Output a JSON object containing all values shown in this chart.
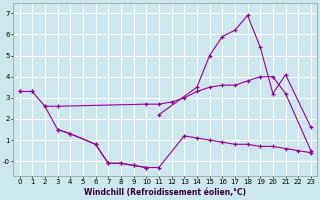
{
  "xlabel": "Windchill (Refroidissement éolien,°C)",
  "background_color": "#cce8ee",
  "grid_color": "#ffffff",
  "line_color": "#990099",
  "x_ticks": [
    0,
    1,
    2,
    3,
    4,
    5,
    6,
    7,
    8,
    9,
    10,
    11,
    12,
    13,
    14,
    15,
    16,
    17,
    18,
    19,
    20,
    21,
    22,
    23
  ],
  "y_ticks": [
    0,
    1,
    2,
    3,
    4,
    5,
    6,
    7
  ],
  "y_tick_labels": [
    "-0",
    "1",
    "2",
    "3",
    "4",
    "5",
    "6",
    "7"
  ],
  "ylim": [
    -0.7,
    7.5
  ],
  "xlim": [
    -0.5,
    23.5
  ],
  "series": [
    {
      "segments": [
        {
          "x": [
            0,
            1
          ],
          "y": [
            3.3,
            3.3
          ]
        },
        {
          "x": [
            11,
            14,
            15,
            16,
            17,
            18,
            19,
            20,
            21,
            23
          ],
          "y": [
            2.2,
            3.5,
            5.0,
            5.9,
            6.2,
            6.9,
            5.4,
            3.2,
            4.1,
            1.6
          ]
        }
      ]
    },
    {
      "segments": [
        {
          "x": [
            0,
            1,
            2,
            3,
            10,
            11,
            12,
            13,
            14,
            15,
            16,
            17,
            18,
            19,
            20,
            21,
            23
          ],
          "y": [
            3.3,
            3.3,
            2.6,
            2.6,
            2.7,
            2.7,
            2.8,
            3.0,
            3.3,
            3.5,
            3.6,
            3.6,
            3.8,
            4.0,
            4.0,
            3.2,
            0.5
          ]
        }
      ]
    },
    {
      "segments": [
        {
          "x": [
            2,
            3,
            4,
            6,
            7,
            8,
            9,
            10,
            11,
            13,
            14,
            15,
            16,
            17,
            18,
            19,
            20,
            21,
            22,
            23
          ],
          "y": [
            2.6,
            1.5,
            1.3,
            0.8,
            -0.1,
            -0.1,
            -0.2,
            -0.3,
            -0.3,
            1.2,
            1.1,
            1.0,
            0.9,
            0.8,
            0.8,
            0.7,
            0.7,
            0.6,
            0.5,
            0.4
          ]
        }
      ]
    },
    {
      "segments": [
        {
          "x": [
            3,
            4,
            6,
            7,
            8,
            9,
            10
          ],
          "y": [
            1.5,
            1.3,
            0.8,
            -0.1,
            -0.1,
            -0.2,
            -0.3
          ]
        }
      ]
    }
  ]
}
